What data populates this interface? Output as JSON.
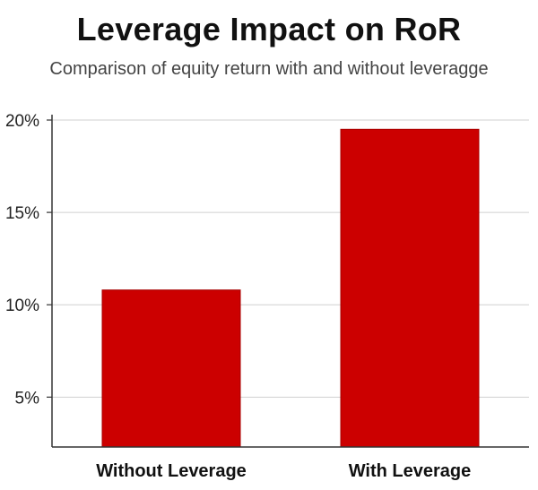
{
  "chart_data": {
    "type": "bar",
    "title": "Leverage Impact on RoR",
    "subtitle": "Comparison of equity return with and without leveragge",
    "categories": [
      "Without Leverage",
      "With Leverage"
    ],
    "values": [
      10.8,
      19.5
    ],
    "ylim": [
      2.3,
      20
    ],
    "yticks": [
      5,
      10,
      15,
      20
    ],
    "ytick_labels": [
      "5%",
      "10%",
      "15%",
      "20%"
    ],
    "grid": true,
    "bar_color": "#cc0000",
    "xlabel": "",
    "ylabel": ""
  }
}
